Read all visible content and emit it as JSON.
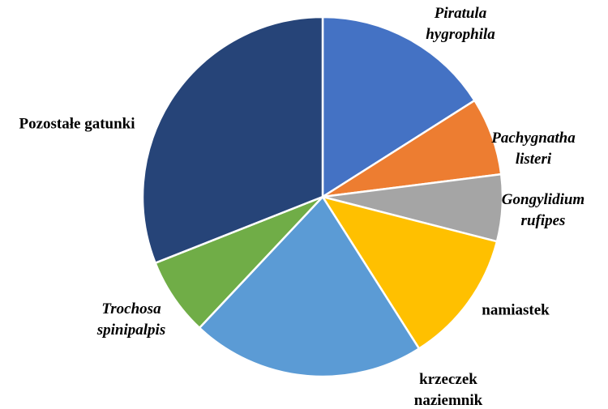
{
  "chart_data": {
    "type": "pie",
    "categories": [
      "Piratula hygrophila",
      "Pachygnatha listeri",
      "Gongylidium rufipes",
      "namiastek",
      "krzeczek naziemnik",
      "Trochosa spinipalpis",
      "Pozostałe gatunki"
    ],
    "values": [
      16,
      7,
      6,
      12,
      21,
      7,
      31
    ],
    "colors": [
      "#4472c4",
      "#ed7d31",
      "#a5a5a5",
      "#ffc000",
      "#5b9bd5",
      "#70ad47",
      "#264478"
    ]
  }
}
